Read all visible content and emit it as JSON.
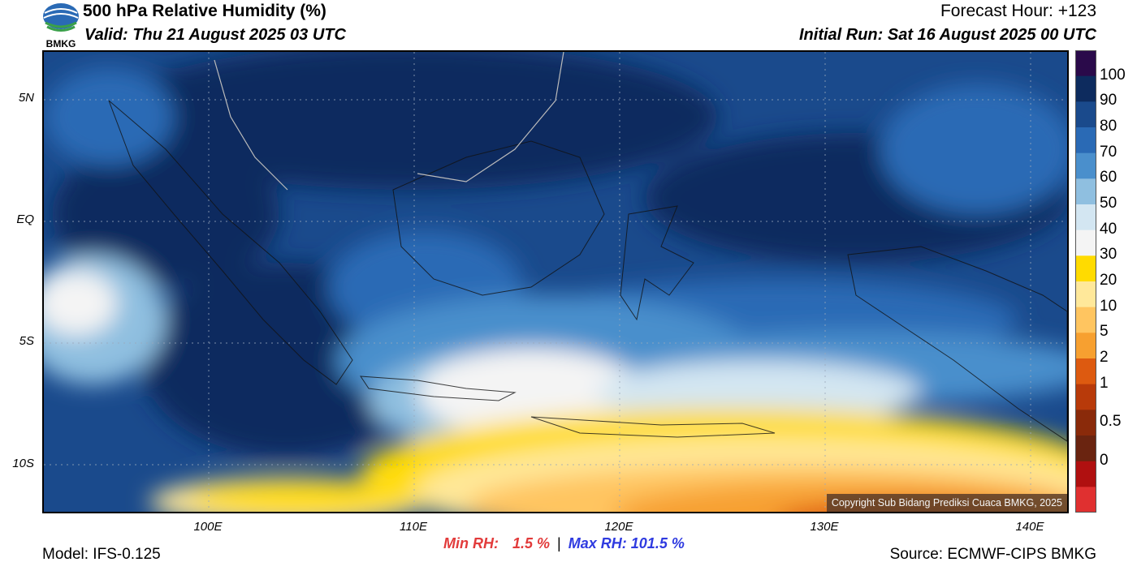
{
  "header": {
    "title": "500 hPa Relative Humidity (%)",
    "valid": "Valid: Thu 21 August 2025 03 UTC",
    "forecast_hour": "Forecast Hour: +123",
    "initial_run": "Initial Run: Sat 16 August 2025 00 UTC",
    "logo_text": "BMKG"
  },
  "map": {
    "lat_labels": [
      "5N",
      "EQ",
      "5S",
      "10S"
    ],
    "lon_labels": [
      "100E",
      "110E",
      "120E",
      "130E",
      "140E"
    ],
    "copyright": "Copyright Sub Bidang Prediksi Cuaca BMKG, 2025"
  },
  "colorbar": {
    "labels": [
      "100",
      "90",
      "80",
      "70",
      "60",
      "50",
      "40",
      "30",
      "20",
      "10",
      "5",
      "2",
      "1",
      "0.5",
      "0"
    ],
    "colors": [
      "#2a0a4a",
      "#0d2b5e",
      "#1a4a8c",
      "#2a6ab5",
      "#4a8fcc",
      "#8fbfe0",
      "#d3e6f2",
      "#f4f4f4",
      "#ffdb00",
      "#ffe89a",
      "#ffc560",
      "#f7a030",
      "#dd5a10",
      "#b83a0a",
      "#8a2a0a",
      "#6a2410",
      "#b01010",
      "#e03030"
    ]
  },
  "footer": {
    "model": "Model: IFS-0.125",
    "min_rh_label": "Min RH:",
    "min_rh_value": "1.5 %",
    "separator": "|",
    "max_rh_label": "Max RH:",
    "max_rh_value": "101.5 %",
    "source": "Source: ECMWF-CIPS BMKG"
  }
}
